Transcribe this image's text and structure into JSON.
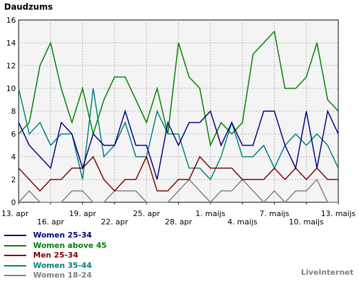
{
  "brand": "LiveInternet",
  "chart_data": {
    "type": "line",
    "title": "Daudzums",
    "xlabel": "",
    "ylabel": "",
    "ylim": [
      0,
      16
    ],
    "yticks": [
      0,
      2,
      4,
      6,
      8,
      10,
      12,
      14,
      16
    ],
    "grid": true,
    "legend": "bottom-left",
    "background": "#f4f4f4",
    "x_tick_labels": [
      {
        "i": 0,
        "label": "13. apr",
        "row": 0
      },
      {
        "i": 3,
        "label": "16. apr",
        "row": 1
      },
      {
        "i": 6,
        "label": "19. apr",
        "row": 0
      },
      {
        "i": 9,
        "label": "22. apr",
        "row": 1
      },
      {
        "i": 12,
        "label": "25. apr",
        "row": 0
      },
      {
        "i": 15,
        "label": "28. apr",
        "row": 1
      },
      {
        "i": 18,
        "label": "1. maijs",
        "row": 0
      },
      {
        "i": 21,
        "label": "4. maijs",
        "row": 1
      },
      {
        "i": 24,
        "label": "7. maijs",
        "row": 0
      },
      {
        "i": 27,
        "label": "10. maijs",
        "row": 1
      },
      {
        "i": 30,
        "label": "13. maijs",
        "row": 0
      }
    ],
    "series": [
      {
        "name": "Women 25-34",
        "color": "#000080",
        "values": [
          7,
          5,
          4,
          3,
          7,
          6,
          3,
          6,
          5,
          5,
          8,
          5,
          5,
          2,
          7,
          5,
          7,
          7,
          8,
          5,
          7,
          5,
          5,
          8,
          8,
          5,
          3,
          8,
          3,
          8,
          6
        ]
      },
      {
        "name": "Women above 45",
        "color": "#008000",
        "values": [
          6,
          7,
          12,
          14,
          10,
          7,
          10,
          6,
          9,
          11,
          11,
          9,
          7,
          10,
          6,
          14,
          11,
          10,
          5,
          7,
          6,
          7,
          13,
          14,
          15,
          10,
          10,
          11,
          14,
          9,
          8
        ]
      },
      {
        "name": "Men 25-34",
        "color": "#800000",
        "values": [
          3,
          2,
          1,
          2,
          2,
          3,
          3,
          4,
          2,
          1,
          2,
          2,
          4,
          1,
          1,
          2,
          2,
          4,
          3,
          3,
          3,
          2,
          2,
          2,
          3,
          2,
          3,
          2,
          3,
          2,
          2
        ]
      },
      {
        "name": "Women 35-44",
        "color": "#008080",
        "values": [
          10,
          6,
          7,
          5,
          6,
          6,
          2,
          10,
          4,
          5,
          7,
          4,
          4,
          8,
          6,
          6,
          3,
          3,
          2,
          4,
          7,
          4,
          4,
          5,
          3,
          5,
          6,
          5,
          6,
          5,
          3
        ]
      },
      {
        "name": "Women 18-24",
        "color": "#808080",
        "values": [
          0,
          1,
          0,
          0,
          0,
          1,
          1,
          0,
          0,
          1,
          1,
          1,
          0,
          0,
          0,
          1,
          2,
          1,
          0,
          1,
          1,
          2,
          1,
          0,
          1,
          0,
          1,
          1,
          2,
          0,
          0
        ]
      }
    ]
  }
}
